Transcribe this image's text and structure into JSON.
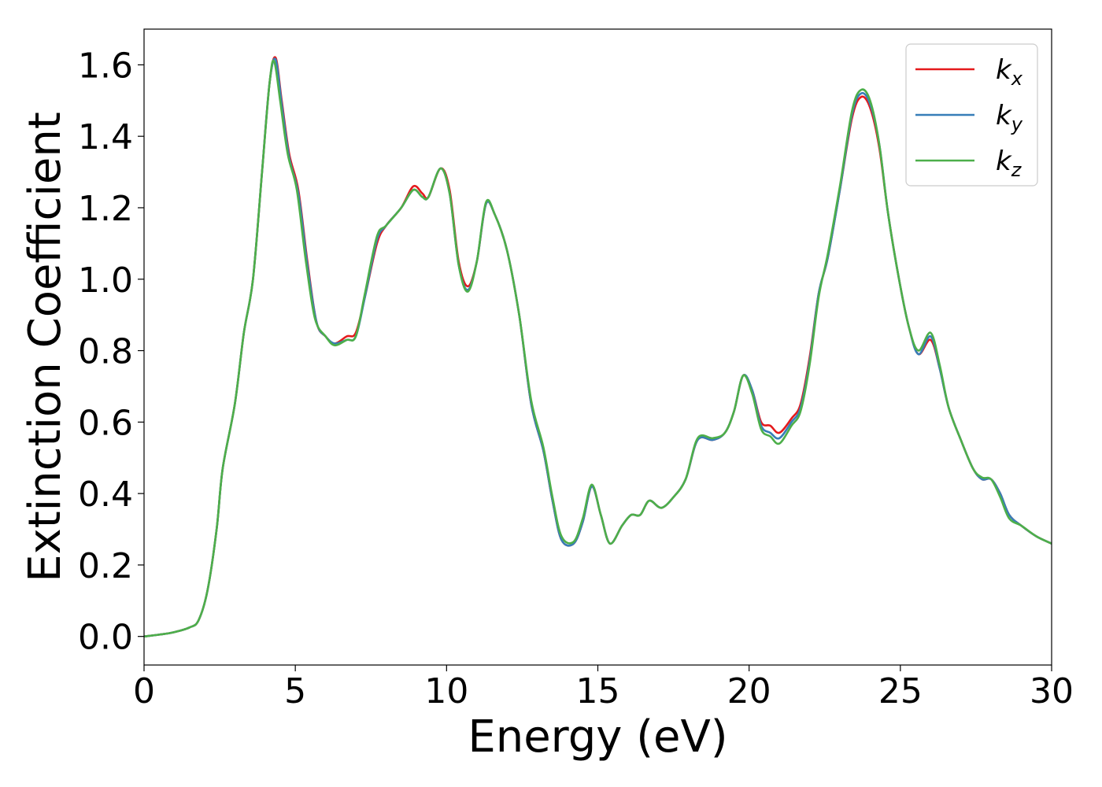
{
  "chart_data": {
    "type": "line",
    "title": "",
    "xlabel": "Energy (eV)",
    "ylabel": "Extinction Coefficient",
    "xlim": [
      0,
      30
    ],
    "ylim": [
      -0.08,
      1.7
    ],
    "xticks": [
      0,
      5,
      10,
      15,
      20,
      25,
      30
    ],
    "xtick_labels": [
      "0",
      "5",
      "10",
      "15",
      "20",
      "25",
      "30"
    ],
    "yticks": [
      0.0,
      0.2,
      0.4,
      0.6,
      0.8,
      1.0,
      1.2,
      1.4,
      1.6
    ],
    "ytick_labels": [
      "0.0",
      "0.2",
      "0.4",
      "0.6",
      "0.8",
      "1.0",
      "1.2",
      "1.4",
      "1.6"
    ],
    "grid": false,
    "legend_position": "top-right",
    "series": [
      {
        "name": "k_x",
        "label_main": "k",
        "label_sub": "x",
        "color": "#e41a1c",
        "points": [
          [
            0,
            0
          ],
          [
            0.5,
            0.005
          ],
          [
            1,
            0.012
          ],
          [
            1.5,
            0.025
          ],
          [
            1.8,
            0.045
          ],
          [
            2.1,
            0.13
          ],
          [
            2.4,
            0.3
          ],
          [
            2.6,
            0.47
          ],
          [
            3,
            0.65
          ],
          [
            3.3,
            0.85
          ],
          [
            3.6,
            1.0
          ],
          [
            3.9,
            1.3
          ],
          [
            4.15,
            1.55
          ],
          [
            4.35,
            1.62
          ],
          [
            4.55,
            1.5
          ],
          [
            4.8,
            1.35
          ],
          [
            5.1,
            1.25
          ],
          [
            5.4,
            1.05
          ],
          [
            5.7,
            0.88
          ],
          [
            6.0,
            0.84
          ],
          [
            6.3,
            0.82
          ],
          [
            6.7,
            0.84
          ],
          [
            7.0,
            0.85
          ],
          [
            7.3,
            0.95
          ],
          [
            7.7,
            1.1
          ],
          [
            8.0,
            1.15
          ],
          [
            8.5,
            1.2
          ],
          [
            8.9,
            1.26
          ],
          [
            9.2,
            1.24
          ],
          [
            9.4,
            1.23
          ],
          [
            9.8,
            1.31
          ],
          [
            10.1,
            1.25
          ],
          [
            10.4,
            1.05
          ],
          [
            10.7,
            0.98
          ],
          [
            11.0,
            1.05
          ],
          [
            11.3,
            1.21
          ],
          [
            11.6,
            1.18
          ],
          [
            12.0,
            1.08
          ],
          [
            12.4,
            0.9
          ],
          [
            12.8,
            0.65
          ],
          [
            13.2,
            0.52
          ],
          [
            13.5,
            0.38
          ],
          [
            13.8,
            0.27
          ],
          [
            14.2,
            0.26
          ],
          [
            14.5,
            0.32
          ],
          [
            14.8,
            0.42
          ],
          [
            15.1,
            0.34
          ],
          [
            15.4,
            0.26
          ],
          [
            15.8,
            0.31
          ],
          [
            16.1,
            0.34
          ],
          [
            16.4,
            0.34
          ],
          [
            16.7,
            0.38
          ],
          [
            17.1,
            0.36
          ],
          [
            17.5,
            0.39
          ],
          [
            17.9,
            0.44
          ],
          [
            18.3,
            0.55
          ],
          [
            18.8,
            0.55
          ],
          [
            19.2,
            0.57
          ],
          [
            19.5,
            0.63
          ],
          [
            19.8,
            0.73
          ],
          [
            20.1,
            0.69
          ],
          [
            20.4,
            0.6
          ],
          [
            20.7,
            0.59
          ],
          [
            21.0,
            0.57
          ],
          [
            21.4,
            0.61
          ],
          [
            21.7,
            0.65
          ],
          [
            22.0,
            0.78
          ],
          [
            22.3,
            0.96
          ],
          [
            22.6,
            1.06
          ],
          [
            23.0,
            1.25
          ],
          [
            23.4,
            1.45
          ],
          [
            23.7,
            1.51
          ],
          [
            24.0,
            1.48
          ],
          [
            24.3,
            1.37
          ],
          [
            24.6,
            1.18
          ],
          [
            25.0,
            0.98
          ],
          [
            25.3,
            0.86
          ],
          [
            25.6,
            0.79
          ],
          [
            26.0,
            0.83
          ],
          [
            26.3,
            0.75
          ],
          [
            26.6,
            0.64
          ],
          [
            27.0,
            0.55
          ],
          [
            27.4,
            0.47
          ],
          [
            27.7,
            0.44
          ],
          [
            28.0,
            0.44
          ],
          [
            28.3,
            0.4
          ],
          [
            28.6,
            0.34
          ],
          [
            29.0,
            0.31
          ],
          [
            29.5,
            0.28
          ],
          [
            30,
            0.26
          ]
        ]
      },
      {
        "name": "k_y",
        "label_main": "k",
        "label_sub": "y",
        "color": "#377eb8",
        "points": [
          [
            0,
            0
          ],
          [
            0.5,
            0.005
          ],
          [
            1,
            0.012
          ],
          [
            1.5,
            0.025
          ],
          [
            1.8,
            0.045
          ],
          [
            2.1,
            0.13
          ],
          [
            2.4,
            0.3
          ],
          [
            2.6,
            0.47
          ],
          [
            3,
            0.65
          ],
          [
            3.3,
            0.85
          ],
          [
            3.6,
            1.0
          ],
          [
            3.9,
            1.3
          ],
          [
            4.15,
            1.55
          ],
          [
            4.35,
            1.615
          ],
          [
            4.55,
            1.49
          ],
          [
            4.8,
            1.34
          ],
          [
            5.1,
            1.24
          ],
          [
            5.4,
            1.04
          ],
          [
            5.7,
            0.88
          ],
          [
            6.0,
            0.84
          ],
          [
            6.3,
            0.82
          ],
          [
            6.7,
            0.83
          ],
          [
            7.0,
            0.84
          ],
          [
            7.3,
            0.95
          ],
          [
            7.7,
            1.11
          ],
          [
            8.0,
            1.15
          ],
          [
            8.5,
            1.2
          ],
          [
            8.9,
            1.25
          ],
          [
            9.2,
            1.23
          ],
          [
            9.4,
            1.23
          ],
          [
            9.8,
            1.31
          ],
          [
            10.1,
            1.24
          ],
          [
            10.4,
            1.04
          ],
          [
            10.7,
            0.97
          ],
          [
            11.0,
            1.05
          ],
          [
            11.3,
            1.21
          ],
          [
            11.6,
            1.18
          ],
          [
            12.0,
            1.08
          ],
          [
            12.4,
            0.9
          ],
          [
            12.8,
            0.65
          ],
          [
            13.2,
            0.52
          ],
          [
            13.5,
            0.38
          ],
          [
            13.8,
            0.27
          ],
          [
            14.2,
            0.26
          ],
          [
            14.5,
            0.32
          ],
          [
            14.8,
            0.42
          ],
          [
            15.1,
            0.34
          ],
          [
            15.4,
            0.26
          ],
          [
            15.8,
            0.31
          ],
          [
            16.1,
            0.34
          ],
          [
            16.4,
            0.34
          ],
          [
            16.7,
            0.38
          ],
          [
            17.1,
            0.36
          ],
          [
            17.5,
            0.39
          ],
          [
            17.9,
            0.44
          ],
          [
            18.3,
            0.55
          ],
          [
            18.8,
            0.55
          ],
          [
            19.2,
            0.57
          ],
          [
            19.5,
            0.63
          ],
          [
            19.8,
            0.73
          ],
          [
            20.1,
            0.69
          ],
          [
            20.4,
            0.59
          ],
          [
            20.7,
            0.57
          ],
          [
            21.0,
            0.555
          ],
          [
            21.4,
            0.6
          ],
          [
            21.7,
            0.64
          ],
          [
            22.0,
            0.77
          ],
          [
            22.3,
            0.96
          ],
          [
            22.6,
            1.06
          ],
          [
            23.0,
            1.25
          ],
          [
            23.4,
            1.46
          ],
          [
            23.7,
            1.52
          ],
          [
            24.0,
            1.49
          ],
          [
            24.3,
            1.38
          ],
          [
            24.6,
            1.18
          ],
          [
            25.0,
            0.98
          ],
          [
            25.3,
            0.86
          ],
          [
            25.6,
            0.79
          ],
          [
            26.0,
            0.84
          ],
          [
            26.3,
            0.75
          ],
          [
            26.6,
            0.64
          ],
          [
            27.0,
            0.55
          ],
          [
            27.4,
            0.47
          ],
          [
            27.7,
            0.44
          ],
          [
            28.0,
            0.44
          ],
          [
            28.3,
            0.4
          ],
          [
            28.6,
            0.34
          ],
          [
            29.0,
            0.31
          ],
          [
            29.5,
            0.28
          ],
          [
            30,
            0.26
          ]
        ]
      },
      {
        "name": "k_z",
        "label_main": "k",
        "label_sub": "z",
        "color": "#4daf4a",
        "points": [
          [
            0,
            0
          ],
          [
            0.5,
            0.005
          ],
          [
            1,
            0.012
          ],
          [
            1.5,
            0.025
          ],
          [
            1.8,
            0.045
          ],
          [
            2.1,
            0.13
          ],
          [
            2.4,
            0.3
          ],
          [
            2.6,
            0.47
          ],
          [
            3,
            0.65
          ],
          [
            3.3,
            0.85
          ],
          [
            3.6,
            1.0
          ],
          [
            3.9,
            1.3
          ],
          [
            4.15,
            1.55
          ],
          [
            4.3,
            1.61
          ],
          [
            4.5,
            1.5
          ],
          [
            4.75,
            1.35
          ],
          [
            5.05,
            1.25
          ],
          [
            5.35,
            1.05
          ],
          [
            5.65,
            0.89
          ],
          [
            6.0,
            0.84
          ],
          [
            6.3,
            0.815
          ],
          [
            6.7,
            0.83
          ],
          [
            7.0,
            0.84
          ],
          [
            7.3,
            0.96
          ],
          [
            7.7,
            1.12
          ],
          [
            8.0,
            1.15
          ],
          [
            8.5,
            1.2
          ],
          [
            8.9,
            1.25
          ],
          [
            9.2,
            1.23
          ],
          [
            9.4,
            1.23
          ],
          [
            9.8,
            1.31
          ],
          [
            10.1,
            1.24
          ],
          [
            10.4,
            1.04
          ],
          [
            10.7,
            0.965
          ],
          [
            11.0,
            1.05
          ],
          [
            11.3,
            1.215
          ],
          [
            11.6,
            1.18
          ],
          [
            12.0,
            1.08
          ],
          [
            12.4,
            0.9
          ],
          [
            12.8,
            0.66
          ],
          [
            13.2,
            0.53
          ],
          [
            13.5,
            0.39
          ],
          [
            13.8,
            0.28
          ],
          [
            14.2,
            0.265
          ],
          [
            14.5,
            0.33
          ],
          [
            14.8,
            0.425
          ],
          [
            15.1,
            0.34
          ],
          [
            15.4,
            0.26
          ],
          [
            15.8,
            0.31
          ],
          [
            16.1,
            0.34
          ],
          [
            16.4,
            0.34
          ],
          [
            16.7,
            0.38
          ],
          [
            17.1,
            0.36
          ],
          [
            17.5,
            0.39
          ],
          [
            17.9,
            0.44
          ],
          [
            18.3,
            0.555
          ],
          [
            18.8,
            0.555
          ],
          [
            19.2,
            0.57
          ],
          [
            19.5,
            0.63
          ],
          [
            19.8,
            0.73
          ],
          [
            20.1,
            0.68
          ],
          [
            20.4,
            0.58
          ],
          [
            20.7,
            0.56
          ],
          [
            21.0,
            0.54
          ],
          [
            21.4,
            0.59
          ],
          [
            21.7,
            0.63
          ],
          [
            22.0,
            0.76
          ],
          [
            22.3,
            0.95
          ],
          [
            22.6,
            1.07
          ],
          [
            23.0,
            1.26
          ],
          [
            23.4,
            1.47
          ],
          [
            23.7,
            1.53
          ],
          [
            24.0,
            1.5
          ],
          [
            24.3,
            1.38
          ],
          [
            24.6,
            1.18
          ],
          [
            25.0,
            0.98
          ],
          [
            25.3,
            0.86
          ],
          [
            25.6,
            0.8
          ],
          [
            26.0,
            0.85
          ],
          [
            26.3,
            0.76
          ],
          [
            26.6,
            0.64
          ],
          [
            27.0,
            0.55
          ],
          [
            27.4,
            0.47
          ],
          [
            27.7,
            0.445
          ],
          [
            28.0,
            0.44
          ],
          [
            28.3,
            0.39
          ],
          [
            28.6,
            0.33
          ],
          [
            29.0,
            0.31
          ],
          [
            29.5,
            0.28
          ],
          [
            30,
            0.26
          ]
        ]
      }
    ]
  }
}
